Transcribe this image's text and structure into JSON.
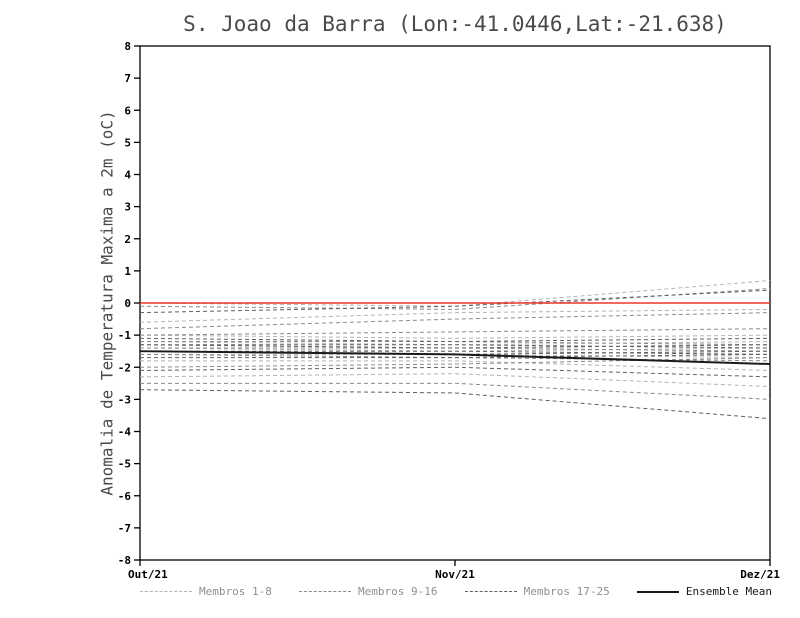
{
  "chart_data": {
    "type": "line",
    "title": "S. Joao da Barra (Lon:-41.0446,Lat:-21.638)",
    "ylabel": "Anomalia de Temperatura Maxima a 2m (oC)",
    "xlabel": "",
    "ylim": [
      -8,
      8
    ],
    "ytick_step": 1,
    "x_range": [
      0,
      2
    ],
    "x_ticks": [
      "Out/21",
      "Nov/21",
      "Dez/21"
    ],
    "grid": false,
    "legend_position": "bottom",
    "zero_line": {
      "value": 0,
      "color": "#e8392b"
    },
    "series": [
      {
        "name": "Membros 1-8",
        "style": "dashed",
        "color": "#b4b4b4",
        "members": [
          [
            0.0,
            -0.1,
            0.7
          ],
          [
            -1.0,
            -1.1,
            -1.0
          ],
          [
            -1.2,
            -1.3,
            -1.2
          ],
          [
            -1.4,
            -1.5,
            -1.4
          ],
          [
            -1.6,
            -1.6,
            -1.7
          ],
          [
            -1.8,
            -1.8,
            -2.1
          ],
          [
            -2.3,
            -2.2,
            -2.6
          ],
          [
            -0.6,
            -0.3,
            -0.2
          ]
        ]
      },
      {
        "name": "Membros 9-16",
        "style": "dashed",
        "color": "#8a8a8a",
        "members": [
          [
            -0.1,
            -0.2,
            0.45
          ],
          [
            -1.0,
            -0.9,
            -0.8
          ],
          [
            -1.2,
            -1.2,
            -1.3
          ],
          [
            -1.4,
            -1.4,
            -1.5
          ],
          [
            -1.6,
            -1.7,
            -1.8
          ],
          [
            -2.0,
            -1.9,
            -1.7
          ],
          [
            -2.5,
            -2.5,
            -3.0
          ],
          [
            -0.8,
            -0.5,
            -0.3
          ]
        ]
      },
      {
        "name": "Membros 17-25",
        "style": "dashed",
        "color": "#606060",
        "members": [
          [
            -0.3,
            -0.1,
            0.4
          ],
          [
            -1.1,
            -1.2,
            -1.1
          ],
          [
            -1.3,
            -1.3,
            -1.4
          ],
          [
            -1.5,
            -1.5,
            -1.6
          ],
          [
            -1.7,
            -1.7,
            -1.6
          ],
          [
            -2.1,
            -2.0,
            -2.3
          ],
          [
            -2.7,
            -2.8,
            -3.6
          ],
          [
            -1.3,
            -1.4,
            -1.3
          ],
          [
            -1.5,
            -1.6,
            -1.5
          ]
        ]
      }
    ],
    "ensemble_mean": {
      "name": "Ensemble Mean",
      "style": "solid",
      "color": "#1a1a1a",
      "values": [
        -1.5,
        -1.6,
        -1.9
      ]
    }
  },
  "legend": [
    {
      "label": "Membros 1-8",
      "style": "dashed",
      "color": "#b4b4b4",
      "label_color": "#8f8f8f"
    },
    {
      "label": "Membros 9-16",
      "style": "dashed",
      "color": "#8a8a8a",
      "label_color": "#8f8f8f"
    },
    {
      "label": "Membros 17-25",
      "style": "dashed",
      "color": "#606060",
      "label_color": "#8f8f8f"
    },
    {
      "label": "Ensemble Mean",
      "style": "solid",
      "color": "#1a1a1a",
      "label_color": "#1a1a1a"
    }
  ]
}
